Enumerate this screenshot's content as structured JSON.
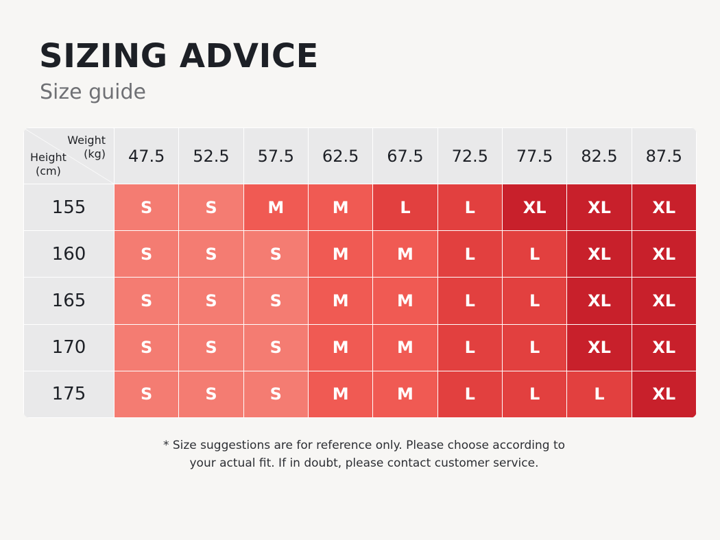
{
  "title": "SIZING ADVICE",
  "subtitle": "Size guide",
  "table": {
    "corner": {
      "weight_label": "Weight",
      "weight_unit": "(kg)",
      "height_label": "Height",
      "height_unit": "(cm)"
    },
    "weights": [
      "47.5",
      "52.5",
      "57.5",
      "62.5",
      "67.5",
      "72.5",
      "77.5",
      "82.5",
      "87.5"
    ],
    "rows": [
      {
        "height": "155",
        "sizes": [
          "S",
          "S",
          "M",
          "M",
          "L",
          "L",
          "XL",
          "XL",
          "XL"
        ]
      },
      {
        "height": "160",
        "sizes": [
          "S",
          "S",
          "S",
          "M",
          "M",
          "L",
          "L",
          "XL",
          "XL"
        ]
      },
      {
        "height": "165",
        "sizes": [
          "S",
          "S",
          "S",
          "M",
          "M",
          "L",
          "L",
          "XL",
          "XL"
        ]
      },
      {
        "height": "170",
        "sizes": [
          "S",
          "S",
          "S",
          "M",
          "M",
          "L",
          "L",
          "XL",
          "XL"
        ]
      },
      {
        "height": "175",
        "sizes": [
          "S",
          "S",
          "S",
          "M",
          "M",
          "L",
          "L",
          "L",
          "XL"
        ]
      }
    ],
    "colors": {
      "S": "#f47c72",
      "M": "#f05a53",
      "L": "#e2403f",
      "XL": "#c8202b",
      "header_bg": "#e9e9ea"
    }
  },
  "footnote": {
    "line1": "* Size suggestions are for reference only. Please choose according to",
    "line2": "your actual fit. If in doubt, please contact customer service."
  }
}
